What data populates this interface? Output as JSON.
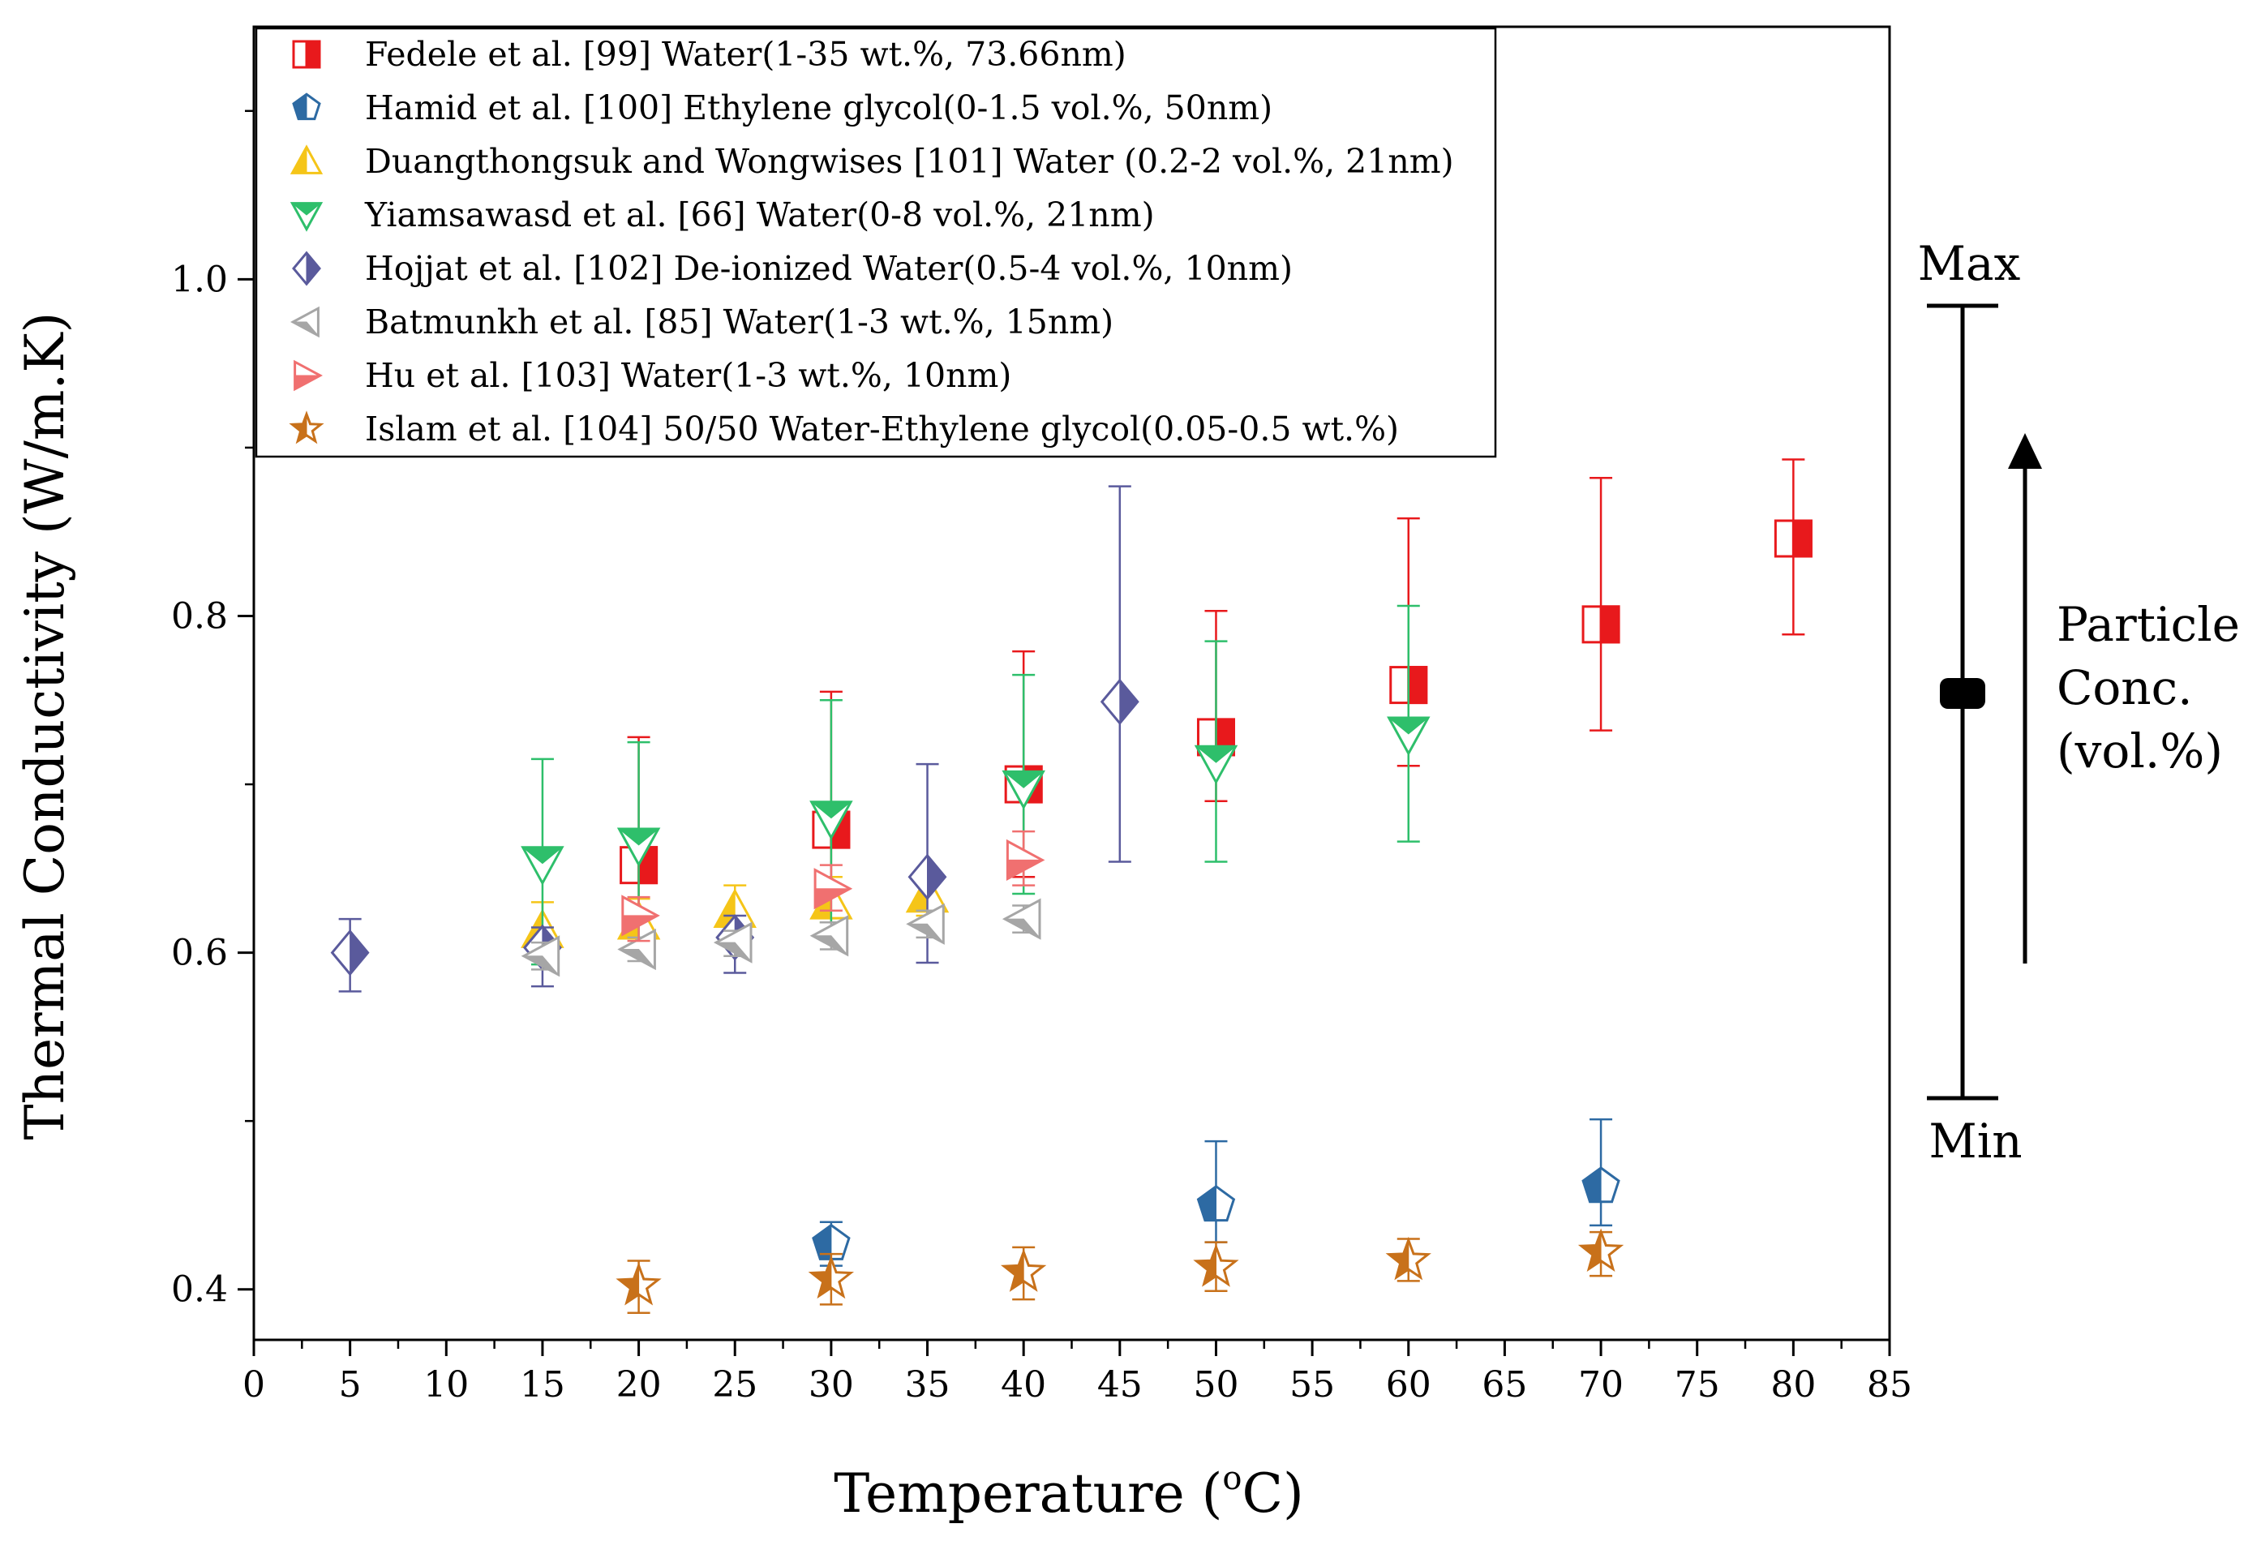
{
  "chart_data": {
    "type": "scatter",
    "title": "",
    "xlabel": "Temperature (°C)",
    "xlabel_parts": [
      "Temperature (",
      "o",
      "C)"
    ],
    "ylabel": "Thermal Conductivity (W/m.K)",
    "xlim": [
      0,
      85
    ],
    "ylim": [
      0.37,
      1.15
    ],
    "xticks": [
      0,
      5,
      10,
      15,
      20,
      25,
      30,
      35,
      40,
      45,
      50,
      55,
      60,
      65,
      70,
      75,
      80,
      85
    ],
    "yticks": [
      0.4,
      0.6,
      0.8,
      1.0
    ],
    "ytick_labels": [
      "0.4",
      "0.6",
      "0.8",
      "1.0"
    ],
    "grid": false,
    "legend_position": "top-left",
    "series": [
      {
        "name": "Fedele et al. [99] Water(1-35 wt.%, 73.66nm)",
        "marker": "square-half",
        "color": "#e8191c",
        "points": [
          {
            "x": 20,
            "y": 0.652,
            "lo": 0.612,
            "hi": 0.728
          },
          {
            "x": 30,
            "y": 0.673,
            "lo": 0.622,
            "hi": 0.755
          },
          {
            "x": 40,
            "y": 0.7,
            "lo": 0.645,
            "hi": 0.779
          },
          {
            "x": 50,
            "y": 0.728,
            "lo": 0.69,
            "hi": 0.803
          },
          {
            "x": 60,
            "y": 0.759,
            "lo": 0.711,
            "hi": 0.858
          },
          {
            "x": 70,
            "y": 0.795,
            "lo": 0.732,
            "hi": 0.882
          },
          {
            "x": 80,
            "y": 0.846,
            "lo": 0.789,
            "hi": 0.893
          }
        ]
      },
      {
        "name": "Hamid et al. [100] Ethylene glycol(0-1.5 vol.%, 50nm)",
        "marker": "pentagon",
        "color": "#2d6aa3",
        "points": [
          {
            "x": 30,
            "y": 0.427,
            "lo": 0.414,
            "hi": 0.44
          },
          {
            "x": 50,
            "y": 0.45,
            "lo": 0.428,
            "hi": 0.488
          },
          {
            "x": 70,
            "y": 0.461,
            "lo": 0.438,
            "hi": 0.501
          }
        ]
      },
      {
        "name": "Duangthongsuk and Wongwises [101] Water (0.2-2 vol.%, 21nm)",
        "marker": "triangle-up",
        "color": "#f5c518",
        "points": [
          {
            "x": 15,
            "y": 0.613,
            "lo": 0.598,
            "hi": 0.63
          },
          {
            "x": 20,
            "y": 0.618,
            "lo": 0.604,
            "hi": 0.632
          },
          {
            "x": 25,
            "y": 0.625,
            "lo": 0.612,
            "hi": 0.64
          },
          {
            "x": 30,
            "y": 0.63,
            "lo": 0.618,
            "hi": 0.645
          },
          {
            "x": 35,
            "y": 0.634,
            "lo": 0.622,
            "hi": 0.648
          }
        ]
      },
      {
        "name": "Yiamsawasd et al. [66] Water(0-8 vol.%, 21nm)",
        "marker": "triangle-down",
        "color": "#2ebf6b",
        "points": [
          {
            "x": 15,
            "y": 0.653,
            "lo": 0.593,
            "hi": 0.715
          },
          {
            "x": 20,
            "y": 0.664,
            "lo": 0.604,
            "hi": 0.725
          },
          {
            "x": 30,
            "y": 0.68,
            "lo": 0.618,
            "hi": 0.75
          },
          {
            "x": 40,
            "y": 0.698,
            "lo": 0.635,
            "hi": 0.765
          },
          {
            "x": 50,
            "y": 0.713,
            "lo": 0.654,
            "hi": 0.785
          },
          {
            "x": 60,
            "y": 0.73,
            "lo": 0.666,
            "hi": 0.806
          }
        ]
      },
      {
        "name": "Hojjat et al. [102] De-ionized Water(0.5-4 vol.%, 10nm)",
        "marker": "diamond",
        "color": "#5a5a9c",
        "points": [
          {
            "x": 5,
            "y": 0.6,
            "lo": 0.577,
            "hi": 0.62
          },
          {
            "x": 15,
            "y": 0.603,
            "lo": 0.58,
            "hi": 0.615
          },
          {
            "x": 25,
            "y": 0.609,
            "lo": 0.588,
            "hi": 0.622
          },
          {
            "x": 35,
            "y": 0.645,
            "lo": 0.594,
            "hi": 0.712
          },
          {
            "x": 45,
            "y": 0.749,
            "lo": 0.654,
            "hi": 0.877
          }
        ]
      },
      {
        "name": "Batmunkh et al. [85] Water(1-3 wt.%, 15nm)",
        "marker": "triangle-left",
        "color": "#a6a6a6",
        "points": [
          {
            "x": 15,
            "y": 0.598,
            "lo": 0.59,
            "hi": 0.606
          },
          {
            "x": 20,
            "y": 0.602,
            "lo": 0.595,
            "hi": 0.609
          },
          {
            "x": 25,
            "y": 0.606,
            "lo": 0.598,
            "hi": 0.613
          },
          {
            "x": 30,
            "y": 0.61,
            "lo": 0.602,
            "hi": 0.618
          },
          {
            "x": 35,
            "y": 0.617,
            "lo": 0.609,
            "hi": 0.625
          },
          {
            "x": 40,
            "y": 0.62,
            "lo": 0.612,
            "hi": 0.628
          }
        ]
      },
      {
        "name": "Hu et al. [103] Water(1-3 wt.%, 10nm)",
        "marker": "triangle-right",
        "color": "#f07070",
        "points": [
          {
            "x": 20,
            "y": 0.622,
            "lo": 0.607,
            "hi": 0.633
          },
          {
            "x": 30,
            "y": 0.638,
            "lo": 0.625,
            "hi": 0.652
          },
          {
            "x": 40,
            "y": 0.655,
            "lo": 0.64,
            "hi": 0.672
          }
        ]
      },
      {
        "name": "Islam et al. [104] 50/50 Water-Ethylene glycol(0.05-0.5 wt.%)",
        "marker": "star",
        "color": "#c8711a",
        "points": [
          {
            "x": 20,
            "y": 0.402,
            "lo": 0.386,
            "hi": 0.417
          },
          {
            "x": 30,
            "y": 0.406,
            "lo": 0.391,
            "hi": 0.421
          },
          {
            "x": 40,
            "y": 0.41,
            "lo": 0.394,
            "hi": 0.425
          },
          {
            "x": 50,
            "y": 0.413,
            "lo": 0.399,
            "hi": 0.428
          },
          {
            "x": 60,
            "y": 0.417,
            "lo": 0.405,
            "hi": 0.43
          },
          {
            "x": 70,
            "y": 0.422,
            "lo": 0.408,
            "hi": 0.434
          }
        ]
      }
    ],
    "annotations": {
      "max_label": "Max",
      "min_label": "Min",
      "side_title_lines": [
        "Particle",
        "Conc.",
        "(vol.%)"
      ]
    }
  }
}
